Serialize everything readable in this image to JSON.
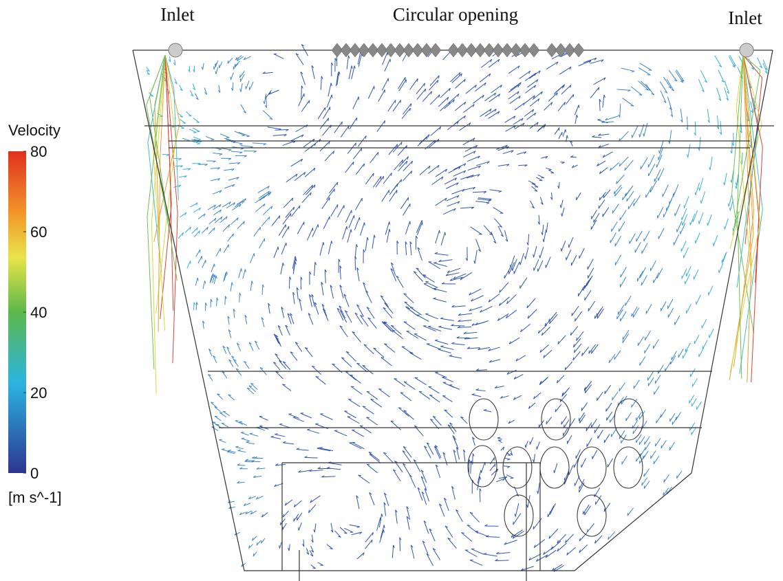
{
  "labels": {
    "inlet_left": "Inlet",
    "opening": "Circular opening",
    "inlet_right": "Inlet"
  },
  "colorbar": {
    "title": "Velocity",
    "unit": "[m s^-1]",
    "range": [
      0,
      80
    ],
    "ticks": [
      0,
      20,
      40,
      60,
      80
    ]
  }
}
